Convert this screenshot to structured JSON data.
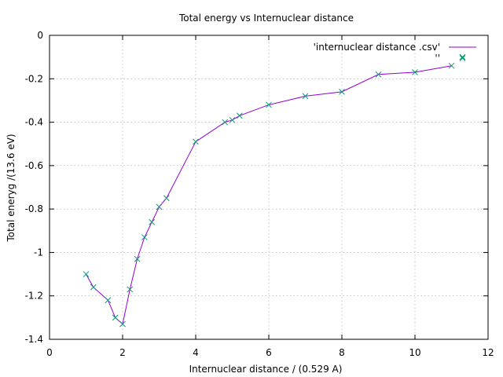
{
  "chart_data": {
    "type": "line",
    "title": "Total energy vs Internuclear distance",
    "xlabel": "Internuclear distance / (0.529 A)",
    "ylabel": "Total eneryg /(13.6 eV)",
    "xlim": [
      0,
      12
    ],
    "ylim": [
      -1.4,
      0
    ],
    "x_ticks": [
      "0",
      "2",
      "4",
      "6",
      "8",
      "10",
      "12"
    ],
    "y_ticks": [
      "0",
      "-0.2",
      "-0.4",
      "-0.6",
      "-0.8",
      "-1",
      "-1.2",
      "-1.4"
    ],
    "grid": true,
    "legend_position": "top-right",
    "series": [
      {
        "name": "'internuclear distance .csv'",
        "style": "line",
        "color": "#9400d3",
        "x": [
          1.0,
          1.2,
          1.6,
          1.8,
          2.0,
          2.2,
          2.4,
          2.6,
          2.8,
          3.0,
          3.2,
          4.0,
          4.8,
          5.0,
          5.2,
          6.0,
          7.0,
          8.0,
          9.0,
          10.0,
          11.0
        ],
        "y": [
          -1.1,
          -1.16,
          -1.22,
          -1.3,
          -1.33,
          -1.17,
          -1.03,
          -0.93,
          -0.86,
          -0.79,
          -0.75,
          -0.49,
          -0.4,
          -0.39,
          -0.37,
          -0.32,
          -0.28,
          -0.26,
          -0.18,
          -0.17,
          -0.14
        ]
      },
      {
        "name": "''",
        "style": "points",
        "marker": "x",
        "color": "#009e73",
        "x": [
          1.0,
          1.2,
          1.6,
          1.8,
          2.0,
          2.2,
          2.4,
          2.6,
          2.8,
          3.0,
          3.2,
          4.0,
          4.8,
          5.0,
          5.2,
          6.0,
          7.0,
          8.0,
          9.0,
          10.0,
          11.0,
          11.3
        ],
        "y": [
          -1.1,
          -1.16,
          -1.22,
          -1.3,
          -1.33,
          -1.17,
          -1.03,
          -0.93,
          -0.86,
          -0.79,
          -0.75,
          -0.49,
          -0.4,
          -0.39,
          -0.37,
          -0.32,
          -0.28,
          -0.26,
          -0.18,
          -0.17,
          -0.14,
          -0.1
        ]
      }
    ]
  }
}
